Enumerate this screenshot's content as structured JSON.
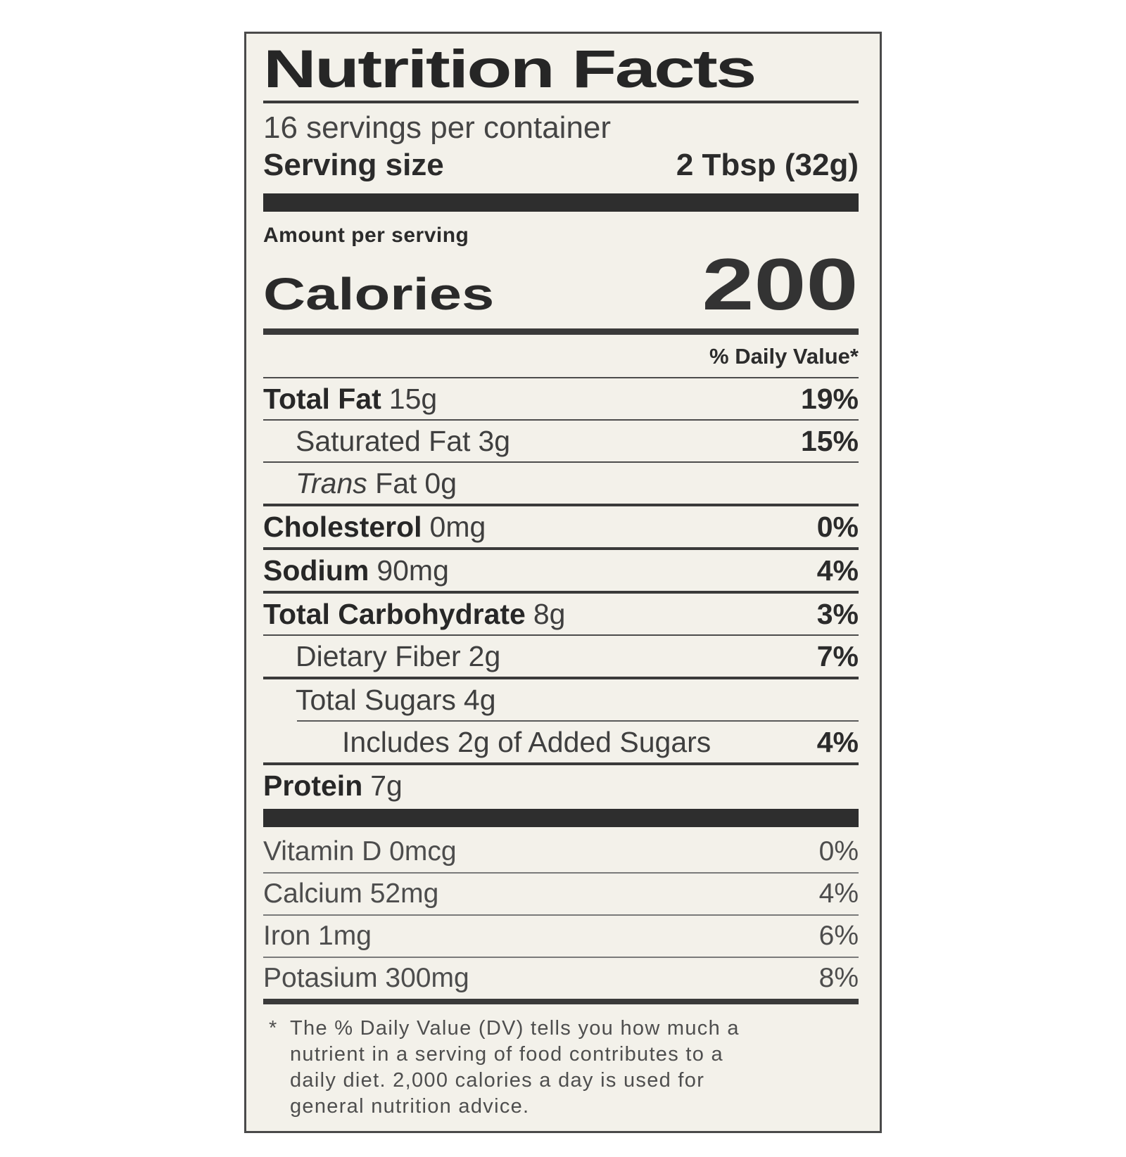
{
  "colors": {
    "label_background": "#f3f1ea",
    "ink": "#2e2e2e",
    "bar": "#2e2e2e"
  },
  "label": {
    "title": "Nutrition Facts",
    "servings_per_container": "16 servings per container",
    "serving_size_label": "Serving size",
    "serving_size_value": "2 Tbsp (32g)",
    "amount_per_serving": "Amount per serving",
    "calories_label": "Calories",
    "calories_value": "200",
    "daily_value_header": "% Daily Value*",
    "nutrients": [
      {
        "name": "Total Fat",
        "amount": "15g",
        "dv": "19%",
        "bold": true,
        "indent": 0,
        "rule": "thin"
      },
      {
        "name": "Saturated Fat",
        "amount": "3g",
        "dv": "15%",
        "bold": false,
        "indent": 1,
        "rule": "thin"
      },
      {
        "italic": "Trans",
        "name": " Fat",
        "amount": "0g",
        "dv": "",
        "bold": false,
        "indent": 1,
        "rule": "thin"
      },
      {
        "name": "Cholesterol",
        "amount": "0mg",
        "dv": "0%",
        "bold": true,
        "indent": 0,
        "rule": "thick"
      },
      {
        "name": "Sodium",
        "amount": "90mg",
        "dv": "4%",
        "bold": true,
        "indent": 0,
        "rule": "thick"
      },
      {
        "name": "Total Carbohydrate",
        "amount": "8g",
        "dv": "3%",
        "bold": true,
        "indent": 0,
        "rule": "thick"
      },
      {
        "name": "Dietary Fiber",
        "amount": "2g",
        "dv": "7%",
        "bold": false,
        "indent": 1,
        "rule": "thin"
      },
      {
        "name": "Total Sugars",
        "amount": "4g",
        "dv": "",
        "bold": false,
        "indent": 1,
        "rule": "thick"
      },
      {
        "name": "Includes 2g of Added Sugars",
        "amount": "",
        "dv": "4%",
        "bold": false,
        "indent": 2,
        "rule": "indent"
      },
      {
        "name": "Protein",
        "amount": "7g",
        "dv": "",
        "bold": true,
        "indent": 0,
        "rule": "thick"
      }
    ],
    "vitamins": [
      {
        "name": "Vitamin D",
        "amount": "0mcg",
        "dv": "0%"
      },
      {
        "name": "Calcium",
        "amount": "52mg",
        "dv": "4%"
      },
      {
        "name": "Iron",
        "amount": "1mg",
        "dv": "6%"
      },
      {
        "name": "Potasium",
        "amount": "300mg",
        "dv": "8%"
      }
    ],
    "footnote_marker": "*",
    "footnote": "The % Daily Value (DV) tells you how much a\nnutrient in a serving of food contributes to a\ndaily diet. 2,000 calories a day is used for\ngeneral nutrition advice."
  }
}
